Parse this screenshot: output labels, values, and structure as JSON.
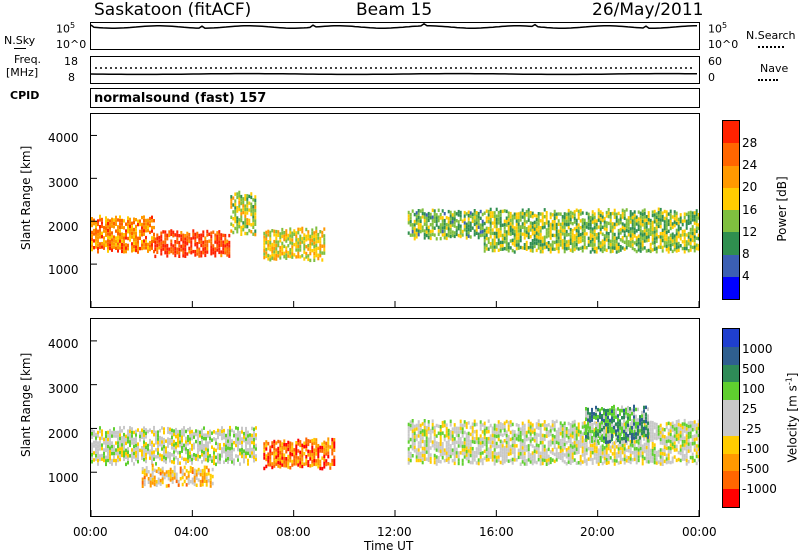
{
  "header": {
    "station": "Saskatoon (fitACF)",
    "beam": "Beam 15",
    "date": "26/May/2011"
  },
  "strip_panels": {
    "nsky_label": "N.Sky",
    "nsearch_label": "N.Search",
    "nsky_ticks": [
      "10^5",
      "10^0"
    ],
    "nsearch_ticks": [
      "10^5",
      "10^0"
    ],
    "freq_label_1": "Freq.",
    "freq_label_2": "[MHz]",
    "freq_ticks": [
      "18",
      "8"
    ],
    "nave_label": "Nave",
    "nave_ticks": [
      "60",
      "0"
    ],
    "cpid_label": "CPID",
    "cpid_value": "normalsound (fast) 157"
  },
  "colors": {
    "power_scale": [
      "#0000ff",
      "#3b5fb3",
      "#2f8f4f",
      "#7fbf3f",
      "#ffcc00",
      "#ff9900",
      "#ff6600",
      "#ff2200"
    ],
    "velocity_scale": [
      "#1f3fcf",
      "#2f5f8f",
      "#2e8b57",
      "#5fcf2f",
      "#c8c8c8",
      "#c8c8c8",
      "#ffcc00",
      "#ff9900",
      "#ff6600",
      "#ff0000"
    ]
  },
  "chart_data": [
    {
      "type": "heatmap",
      "title": "Power",
      "ylabel": "Slant Range [km]",
      "xlabel": "Time UT",
      "ylim": [
        0,
        4500
      ],
      "yticks": [
        "1000",
        "2000",
        "3000",
        "4000"
      ],
      "xticks": [
        "00:00",
        "04:00",
        "08:00",
        "12:00",
        "16:00",
        "20:00",
        "00:00"
      ],
      "xlim_hours": [
        0,
        24
      ],
      "colorbar": {
        "label": "Power [dB]",
        "ticks": [
          "4",
          "8",
          "12",
          "16",
          "20",
          "24",
          "28"
        ]
      },
      "echo_bands": [
        {
          "t_start": 0.0,
          "t_end": 2.5,
          "r_low": 1300,
          "r_high": 2100,
          "level": 0.75
        },
        {
          "t_start": 2.5,
          "t_end": 5.5,
          "r_low": 1200,
          "r_high": 1700,
          "level": 0.9
        },
        {
          "t_start": 5.5,
          "t_end": 6.5,
          "r_low": 1700,
          "r_high": 2600,
          "level": 0.5
        },
        {
          "t_start": 6.8,
          "t_end": 9.2,
          "r_low": 1100,
          "r_high": 1800,
          "level": 0.55
        },
        {
          "t_start": 12.5,
          "t_end": 15.5,
          "r_low": 1600,
          "r_high": 2200,
          "level": 0.4
        },
        {
          "t_start": 15.5,
          "t_end": 24.0,
          "r_low": 1300,
          "r_high": 2200,
          "level": 0.45
        }
      ]
    },
    {
      "type": "heatmap",
      "title": "Velocity",
      "ylabel": "Slant Range [km]",
      "xlabel": "Time UT",
      "ylim": [
        0,
        4500
      ],
      "yticks": [
        "1000",
        "2000",
        "3000",
        "4000"
      ],
      "xticks": [
        "00:00",
        "04:00",
        "08:00",
        "12:00",
        "16:00",
        "20:00",
        "00:00"
      ],
      "xlim_hours": [
        0,
        24
      ],
      "colorbar": {
        "label": "Velocity [m s^-1]",
        "ticks": [
          "1000",
          "500",
          "100",
          "25",
          "-25",
          "-100",
          "-500",
          "-1000"
        ]
      },
      "echo_bands": [
        {
          "t_start": 0.0,
          "t_end": 6.5,
          "r_low": 1200,
          "r_high": 2000,
          "level": 0.5
        },
        {
          "t_start": 2.0,
          "t_end": 4.8,
          "r_low": 700,
          "r_high": 1100,
          "level": 0.65
        },
        {
          "t_start": 6.8,
          "t_end": 9.6,
          "r_low": 1100,
          "r_high": 1700,
          "level": 0.82
        },
        {
          "t_start": 12.5,
          "t_end": 24.0,
          "r_low": 1200,
          "r_high": 2100,
          "level": 0.5
        },
        {
          "t_start": 19.5,
          "t_end": 22.0,
          "r_low": 1700,
          "r_high": 2500,
          "level": 0.3
        }
      ]
    }
  ]
}
